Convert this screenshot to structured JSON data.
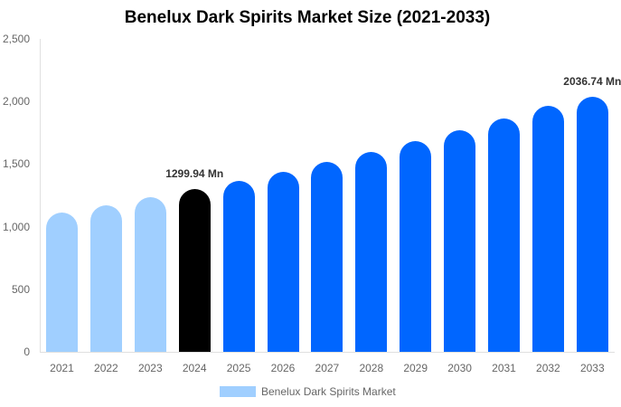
{
  "chart_data": {
    "type": "bar",
    "title": "Benelux Dark Spirits Market Size (2021-2033)",
    "xlabel": "",
    "ylabel": "",
    "ylim": [
      0,
      2500
    ],
    "yticks": [
      "0",
      "500",
      "1,000",
      "1,500",
      "2,000",
      "2,500"
    ],
    "grid": false,
    "legend_position": "bottom",
    "categories": [
      "2021",
      "2022",
      "2023",
      "2024",
      "2025",
      "2026",
      "2027",
      "2028",
      "2029",
      "2030",
      "2031",
      "2032",
      "2033"
    ],
    "series": [
      {
        "name": "Benelux Dark Spirits Market",
        "values": [
          1113,
          1170,
          1233,
          1299.94,
          1369,
          1441,
          1518,
          1598,
          1683,
          1772,
          1866,
          1965,
          2036.74
        ],
        "colors": [
          "#a0cfff",
          "#a0cfff",
          "#a0cfff",
          "#000000",
          "#0066ff",
          "#0066ff",
          "#0066ff",
          "#0066ff",
          "#0066ff",
          "#0066ff",
          "#0066ff",
          "#0066ff",
          "#0066ff"
        ]
      }
    ],
    "annotations": [
      {
        "category": "2024",
        "text": "1299.94 Mn"
      },
      {
        "category": "2033",
        "text": "2036.74 Mn"
      }
    ]
  },
  "legend": {
    "label": "Benelux Dark Spirits Market",
    "color": "#a0cfff"
  }
}
